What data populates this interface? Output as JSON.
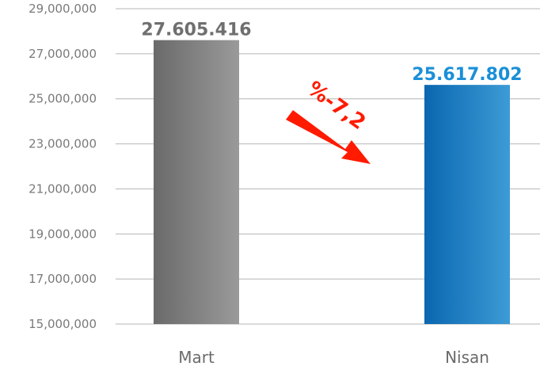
{
  "chart_data": {
    "type": "bar",
    "categories": [
      "Mart",
      "Nisan"
    ],
    "values": [
      27605416,
      25617802
    ],
    "data_labels": [
      "27.605.416",
      "25.617.802"
    ],
    "ylim": [
      15000000,
      29000000
    ],
    "yticks": [
      15000000,
      17000000,
      19000000,
      21000000,
      23000000,
      25000000,
      27000000,
      29000000
    ],
    "ytick_labels": [
      "15,000,000",
      "17,000,000",
      "19,000,000",
      "21,000,000",
      "23,000,000",
      "25,000,000",
      "27,000,000",
      "29,000,000"
    ],
    "grid": true,
    "legend": "none",
    "annotation": "%-7,2",
    "colors": {
      "bar_Mart": [
        "#6a6a6a",
        "#9a9a9a"
      ],
      "bar_Nisan": [
        "#0a67b0",
        "#3d9bd6"
      ],
      "label_Mart": "#6f6f6f",
      "label_Nisan": "#1a8fd8",
      "annotation": "#ff1a00",
      "grid": "#b4b4b4"
    }
  }
}
